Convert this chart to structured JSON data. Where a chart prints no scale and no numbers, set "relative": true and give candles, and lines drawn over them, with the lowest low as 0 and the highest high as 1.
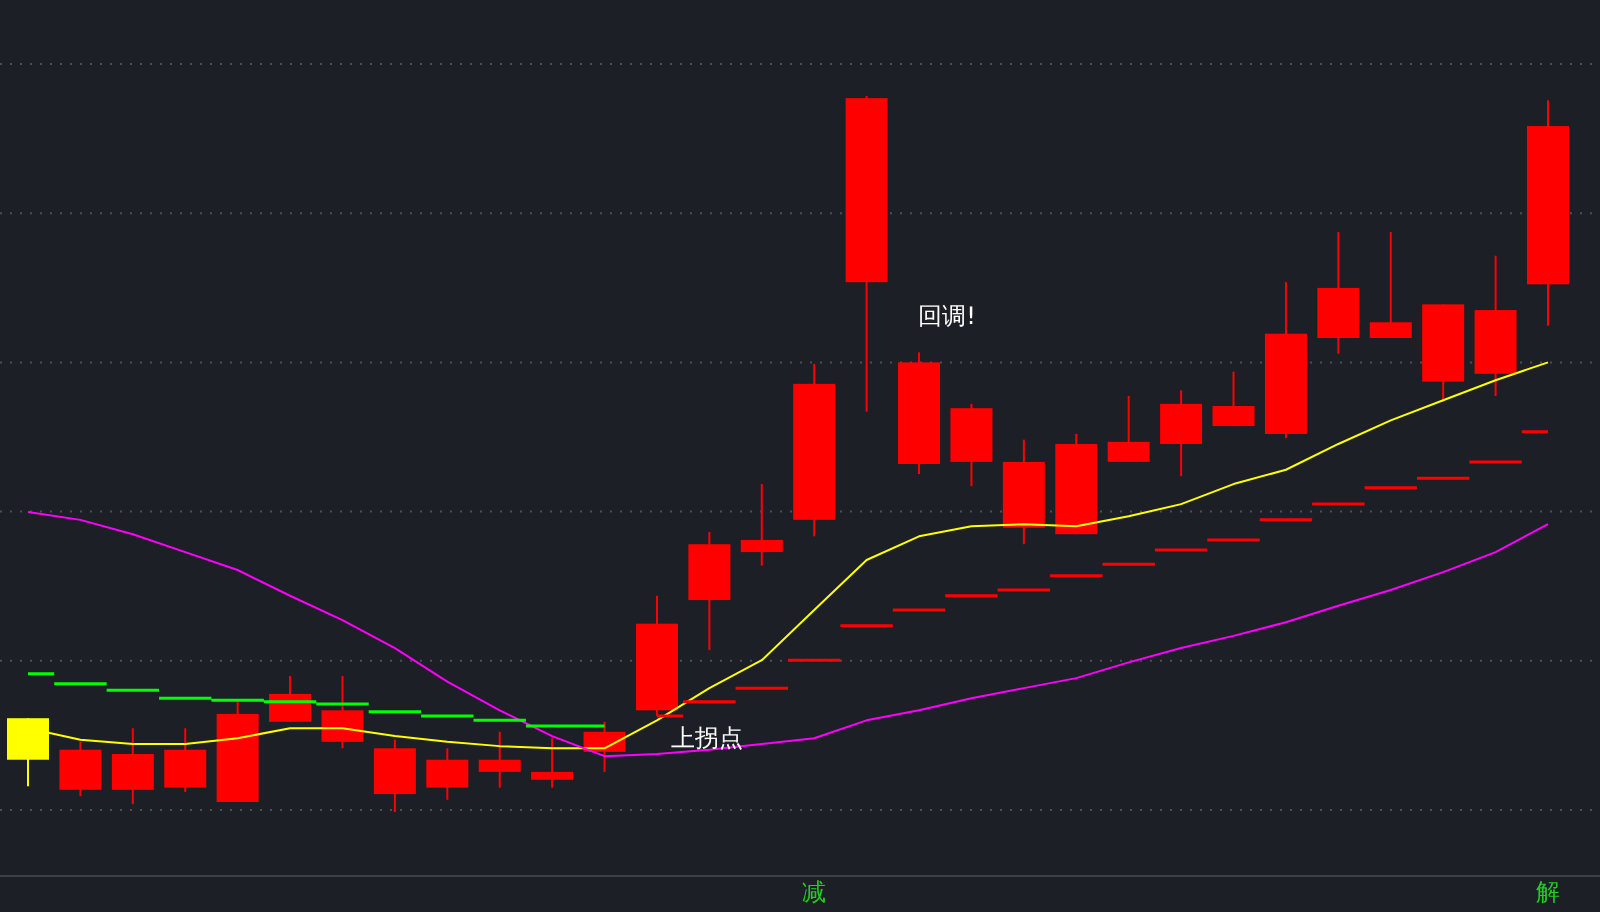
{
  "chart_data": {
    "type": "candlestick",
    "relative": true,
    "grid": true,
    "categories": [
      null,
      null,
      null,
      null,
      null,
      null,
      null,
      null,
      null,
      null,
      null,
      null,
      null,
      null,
      null,
      "减",
      null,
      null,
      null,
      null,
      null,
      null,
      null,
      null,
      null,
      null,
      null,
      null,
      null,
      "解"
    ],
    "ohlc": [
      [
        0.073,
        0.131,
        0.036,
        0.131
      ],
      [
        0.031,
        0.098,
        0.022,
        0.087
      ],
      [
        0.031,
        0.117,
        0.011,
        0.081
      ],
      [
        0.034,
        0.117,
        0.028,
        0.087
      ],
      [
        0.014,
        0.154,
        0.014,
        0.137
      ],
      [
        0.126,
        0.19,
        0.126,
        0.165
      ],
      [
        0.098,
        0.19,
        0.089,
        0.142
      ],
      [
        0.025,
        0.101,
        0,
        0.089
      ],
      [
        0.034,
        0.089,
        0.017,
        0.073
      ],
      [
        0.056,
        0.112,
        0.034,
        0.073
      ],
      [
        0.045,
        0.103,
        0.034,
        0.056
      ],
      [
        0.084,
        0.126,
        0.056,
        0.112
      ],
      [
        0.142,
        0.302,
        0.134,
        0.263
      ],
      [
        0.296,
        0.391,
        0.226,
        0.374
      ],
      [
        0.363,
        0.458,
        0.344,
        0.38
      ],
      [
        0.408,
        0.626,
        0.385,
        0.598
      ],
      [
        0.74,
        1,
        0.559,
        0.997
      ],
      [
        0.486,
        0.642,
        0.472,
        0.628
      ],
      [
        0.489,
        0.57,
        0.455,
        0.564
      ],
      [
        0.397,
        0.52,
        0.374,
        0.489
      ],
      [
        0.388,
        0.528,
        0.388,
        0.514
      ],
      [
        0.489,
        0.581,
        0.489,
        0.517
      ],
      [
        0.514,
        0.589,
        0.469,
        0.57
      ],
      [
        0.539,
        0.615,
        0.539,
        0.567
      ],
      [
        0.528,
        0.74,
        0.522,
        0.668
      ],
      [
        0.662,
        0.81,
        0.64,
        0.732
      ],
      [
        0.662,
        0.81,
        0.662,
        0.684
      ],
      [
        0.601,
        0.709,
        0.573,
        0.709
      ],
      [
        0.612,
        0.777,
        0.581,
        0.701
      ],
      [
        0.737,
        0.994,
        0.679,
        0.958
      ]
    ],
    "colors": [
      "#ffff00",
      "#ff0000",
      "#ff0000",
      "#ff0000",
      "#ff0000",
      "#ff0000",
      "#ff0000",
      "#ff0000",
      "#ff0000",
      "#ff0000",
      "#ff0000",
      "#ff0000",
      "#ff0000",
      "#ff0000",
      "#ff0000",
      "#ff0000",
      "#ff0000",
      "#ff0000",
      "#ff0000",
      "#ff0000",
      "#ff0000",
      "#ff0000",
      "#ff0000",
      "#ff0000",
      "#ff0000",
      "#ff0000",
      "#ff0000",
      "#ff0000",
      "#ff0000",
      "#ff0000"
    ],
    "series": [
      {
        "type": "line",
        "color": "#ffff00",
        "values": [
          0.117,
          0.101,
          0.095,
          0.095,
          0.103,
          0.117,
          0.117,
          0.106,
          0.098,
          0.092,
          0.089,
          0.089,
          0.128,
          0.173,
          0.212,
          0.282,
          0.352,
          0.385,
          0.399,
          0.402,
          0.399,
          0.413,
          0.43,
          0.458,
          0.478,
          0.514,
          0.547,
          0.575,
          0.603,
          0.628
        ]
      },
      {
        "type": "line",
        "color": "#ff00ff",
        "values": [
          0.419,
          0.408,
          0.388,
          0.363,
          0.338,
          0.302,
          0.268,
          0.229,
          0.182,
          0.142,
          0.106,
          0.078,
          0.081,
          0.087,
          0.095,
          0.103,
          0.128,
          0.142,
          0.159,
          0.173,
          0.187,
          0.209,
          0.229,
          0.246,
          0.265,
          0.288,
          0.31,
          0.335,
          0.363,
          0.402
        ]
      },
      {
        "type": "step",
        "color": "#00ff00",
        "values": [
          0.193,
          0.179,
          0.17,
          0.159,
          0.156,
          0.154,
          0.151,
          0.14,
          0.134,
          0.128,
          0.12,
          0.12,
          null,
          null,
          null,
          null,
          null,
          null,
          null,
          null,
          null,
          null,
          null,
          null,
          null,
          null,
          null,
          null,
          null,
          null
        ]
      },
      {
        "type": "step",
        "color": "#ff0000",
        "values": [
          null,
          null,
          null,
          null,
          null,
          null,
          null,
          null,
          null,
          null,
          null,
          null,
          0.134,
          0.154,
          0.173,
          0.212,
          0.26,
          0.282,
          0.302,
          0.31,
          0.33,
          0.346,
          0.366,
          0.38,
          0.408,
          0.43,
          0.453,
          0.466,
          0.489,
          0.531
        ]
      }
    ],
    "annotations": [
      "回调!",
      "上拐点"
    ]
  }
}
